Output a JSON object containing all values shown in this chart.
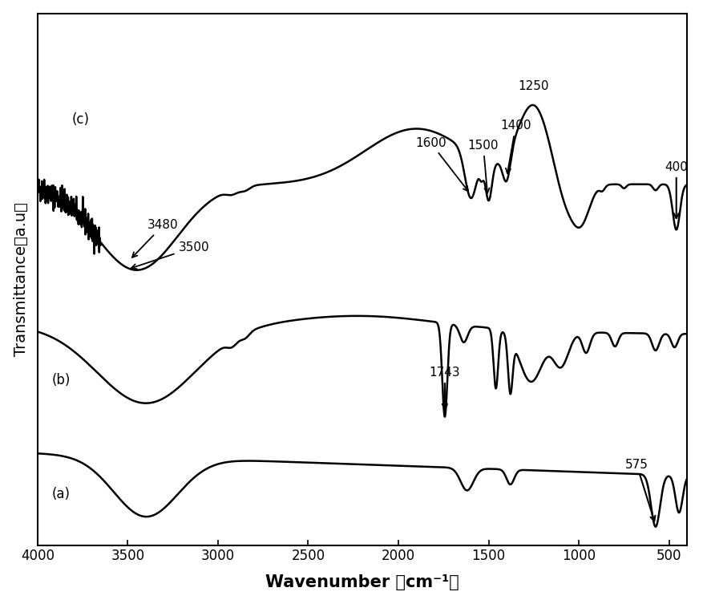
{
  "xlabel": "Wavenumber （cm⁻¹）",
  "ylabel": "Transmittance（a.u）",
  "xlim": [
    4000,
    400
  ],
  "xticks": [
    4000,
    3500,
    3000,
    2500,
    2000,
    1500,
    1000,
    500
  ],
  "background_color": "#ffffff",
  "curve_color": "#000000",
  "label_a": "(a)",
  "label_b": "(b)",
  "label_c": "(c)",
  "ann_3480_text": "3480",
  "ann_3500_text": "3500",
  "ann_1600_text": "1600",
  "ann_1500_text": "1500",
  "ann_1400_text": "1400",
  "ann_1250_text": "1250",
  "ann_400_text": "400",
  "ann_1743_text": "1743",
  "ann_575_text": "575"
}
